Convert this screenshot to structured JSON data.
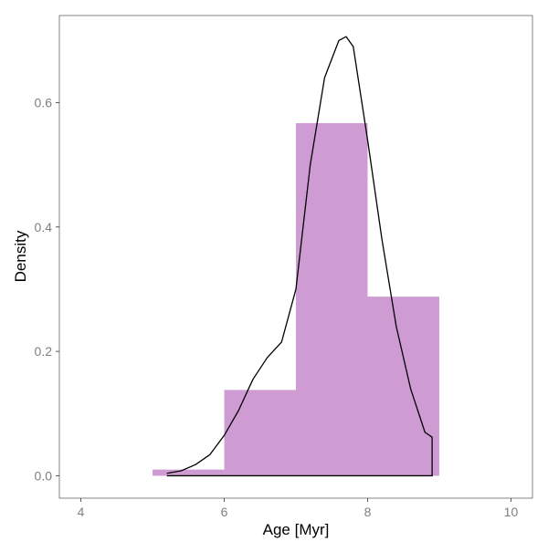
{
  "chart_data": {
    "type": "bar",
    "xlabel": "Age [Myr]",
    "ylabel": "Density",
    "xlim": [
      3.7,
      10.3
    ],
    "ylim": [
      -0.036,
      0.74
    ],
    "x_ticks": [
      {
        "value": 4,
        "label": "4"
      },
      {
        "value": 6,
        "label": "6"
      },
      {
        "value": 8,
        "label": "8"
      },
      {
        "value": 10,
        "label": "10"
      }
    ],
    "y_ticks": [
      {
        "value": 0.0,
        "label": "0.0"
      },
      {
        "value": 0.2,
        "label": "0.2"
      },
      {
        "value": 0.4,
        "label": "0.4"
      },
      {
        "value": 0.6,
        "label": "0.6"
      }
    ],
    "grid": false,
    "histogram": {
      "color": "#cf9bd3",
      "bins": [
        {
          "x0": 5,
          "x1": 6,
          "density": 0.01
        },
        {
          "x0": 6,
          "x1": 7,
          "density": 0.138
        },
        {
          "x0": 7,
          "x1": 8,
          "density": 0.567
        },
        {
          "x0": 8,
          "x1": 9,
          "density": 0.288
        }
      ]
    },
    "density_curve": {
      "color": "#000000",
      "x": [
        5.2,
        5.4,
        5.6,
        5.8,
        6.0,
        6.2,
        6.4,
        6.6,
        6.8,
        7.0,
        7.2,
        7.4,
        7.6,
        7.7,
        7.8,
        8.0,
        8.2,
        8.4,
        8.6,
        8.8,
        8.9,
        8.9,
        5.2
      ],
      "y": [
        0.004,
        0.008,
        0.018,
        0.034,
        0.065,
        0.105,
        0.155,
        0.19,
        0.215,
        0.3,
        0.5,
        0.64,
        0.7,
        0.706,
        0.69,
        0.54,
        0.38,
        0.24,
        0.14,
        0.07,
        0.062,
        0.0,
        0.0
      ]
    }
  }
}
